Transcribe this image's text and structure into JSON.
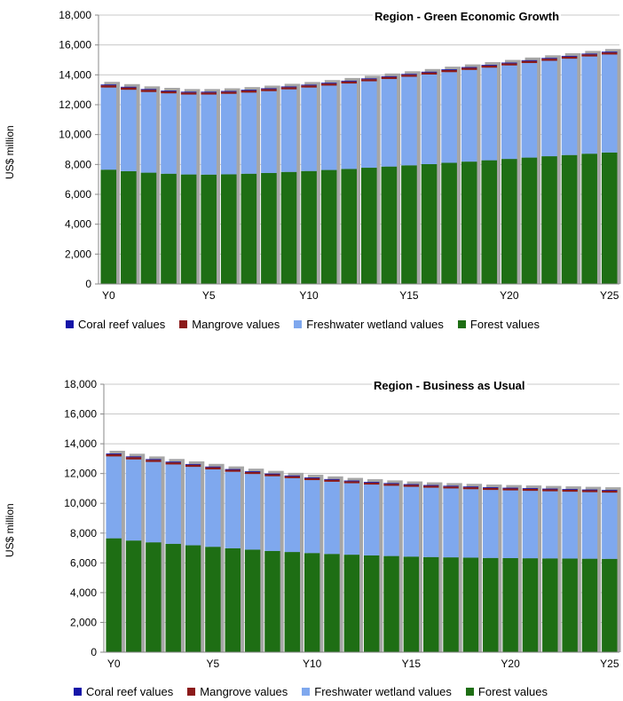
{
  "chart_data": [
    {
      "type": "bar",
      "stacked": true,
      "title": "Region - Green Economic Growth",
      "ylabel": "US$ million",
      "ylim": [
        0,
        18000
      ],
      "yticks": [
        "0",
        "2,000",
        "4,000",
        "6,000",
        "8,000",
        "10,000",
        "12,000",
        "14,000",
        "16,000",
        "18,000"
      ],
      "categories": [
        "Y0",
        "Y1",
        "Y2",
        "Y3",
        "Y4",
        "Y5",
        "Y6",
        "Y7",
        "Y8",
        "Y9",
        "Y10",
        "Y11",
        "Y12",
        "Y13",
        "Y14",
        "Y15",
        "Y16",
        "Y17",
        "Y18",
        "Y19",
        "Y20",
        "Y21",
        "Y22",
        "Y23",
        "Y24",
        "Y25"
      ],
      "xtick_labels": [
        "Y0",
        "",
        "",
        "",
        "",
        "Y5",
        "",
        "",
        "",
        "",
        "Y10",
        "",
        "",
        "",
        "",
        "Y15",
        "",
        "",
        "",
        "",
        "Y20",
        "",
        "",
        "",
        "",
        "Y25"
      ],
      "legend_position": "bottom",
      "series": [
        {
          "name": "Forest values",
          "color": "#1e6e14",
          "values": [
            7650,
            7550,
            7450,
            7380,
            7330,
            7320,
            7340,
            7380,
            7430,
            7500,
            7560,
            7630,
            7700,
            7780,
            7860,
            7940,
            8020,
            8110,
            8190,
            8280,
            8370,
            8460,
            8550,
            8630,
            8720,
            8800
          ]
        },
        {
          "name": "Freshwater wetland values",
          "color": "#7fa8ee",
          "values": [
            5500,
            5450,
            5400,
            5380,
            5350,
            5360,
            5390,
            5430,
            5480,
            5530,
            5590,
            5650,
            5720,
            5790,
            5860,
            5930,
            6000,
            6070,
            6140,
            6200,
            6260,
            6330,
            6390,
            6450,
            6510,
            6560
          ]
        },
        {
          "name": "Mangrove values",
          "color": "#8b1a1a",
          "values": [
            150,
            150,
            150,
            140,
            140,
            140,
            140,
            140,
            140,
            140,
            140,
            140,
            140,
            140,
            140,
            140,
            140,
            140,
            140,
            140,
            140,
            140,
            140,
            140,
            140,
            140
          ]
        },
        {
          "name": "Coral reef values",
          "color": "#1515a8",
          "values": [
            50,
            50,
            50,
            50,
            50,
            50,
            50,
            50,
            50,
            50,
            50,
            50,
            50,
            50,
            50,
            50,
            50,
            50,
            50,
            50,
            50,
            50,
            50,
            50,
            50,
            50
          ]
        }
      ]
    },
    {
      "type": "bar",
      "stacked": true,
      "title": "Region - Business as Usual",
      "ylabel": "US$ million",
      "ylim": [
        0,
        18000
      ],
      "yticks": [
        "0",
        "2,000",
        "4,000",
        "6,000",
        "8,000",
        "10,000",
        "12,000",
        "14,000",
        "16,000",
        "18,000"
      ],
      "categories": [
        "Y0",
        "Y1",
        "Y2",
        "Y3",
        "Y4",
        "Y5",
        "Y6",
        "Y7",
        "Y8",
        "Y9",
        "Y10",
        "Y11",
        "Y12",
        "Y13",
        "Y14",
        "Y15",
        "Y16",
        "Y17",
        "Y18",
        "Y19",
        "Y20",
        "Y21",
        "Y22",
        "Y23",
        "Y24",
        "Y25"
      ],
      "xtick_labels": [
        "Y0",
        "",
        "",
        "",
        "",
        "Y5",
        "",
        "",
        "",
        "",
        "Y10",
        "",
        "",
        "",
        "",
        "Y15",
        "",
        "",
        "",
        "",
        "Y20",
        "",
        "",
        "",
        "",
        "Y25"
      ],
      "legend_position": "bottom",
      "series": [
        {
          "name": "Forest values",
          "color": "#1e6e14",
          "values": [
            7650,
            7500,
            7380,
            7280,
            7180,
            7080,
            6980,
            6890,
            6800,
            6730,
            6660,
            6600,
            6550,
            6500,
            6460,
            6420,
            6390,
            6370,
            6350,
            6330,
            6320,
            6310,
            6300,
            6290,
            6280,
            6270
          ]
        },
        {
          "name": "Freshwater wetland values",
          "color": "#7fa8ee",
          "values": [
            5500,
            5450,
            5400,
            5330,
            5270,
            5200,
            5140,
            5080,
            5020,
            4960,
            4900,
            4850,
            4800,
            4760,
            4720,
            4690,
            4660,
            4630,
            4600,
            4570,
            4550,
            4530,
            4510,
            4490,
            4470,
            4450
          ]
        },
        {
          "name": "Mangrove values",
          "color": "#8b1a1a",
          "values": [
            150,
            150,
            140,
            140,
            140,
            140,
            130,
            130,
            130,
            130,
            130,
            130,
            130,
            130,
            130,
            130,
            130,
            130,
            130,
            130,
            130,
            130,
            130,
            130,
            130,
            130
          ]
        },
        {
          "name": "Coral reef values",
          "color": "#1515a8",
          "values": [
            50,
            50,
            50,
            50,
            50,
            50,
            50,
            50,
            50,
            50,
            50,
            50,
            50,
            50,
            50,
            50,
            50,
            50,
            50,
            50,
            50,
            50,
            50,
            50,
            50,
            50
          ]
        }
      ]
    }
  ]
}
